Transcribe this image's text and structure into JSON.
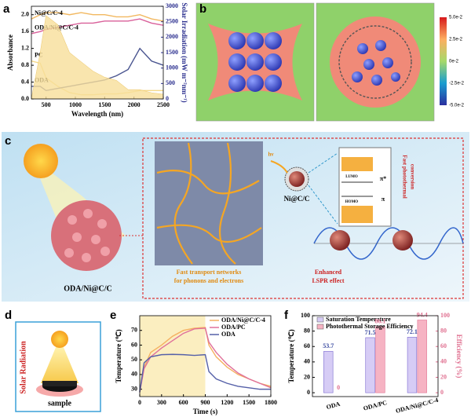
{
  "panel_labels": [
    "a",
    "b",
    "c",
    "d",
    "e",
    "f"
  ],
  "panels": {
    "b": {
      "colorbar_ticks": [
        "5.0e-2",
        "2.5e-2",
        "0e-2",
        "-2.5e-2",
        "-5.0e-2"
      ]
    },
    "c": {
      "particle_label": "ODA/Ni@C/C",
      "network_line1": "Fast transport networks",
      "network_line2": "for phonons and electrons",
      "nanoparticle": "Ni@C/C",
      "light": "hν",
      "lumo": "LUMO",
      "homo": "HOMO",
      "pi_star": "π*",
      "pi": "π",
      "lspr_line1": "Enhanced",
      "lspr_line2": "LSPR effect",
      "conversion_line1": "Fast photothermal",
      "conversion_line2": "conversion"
    },
    "d": {
      "side_label": "Solar Radiation",
      "sample": "sample"
    }
  },
  "chart_data": [
    {
      "type": "line",
      "x_label": "Wavelength (nm)",
      "y_label": "Absorbance",
      "y2_label": "Solar Irradiation (mW m⁻²nm⁻¹)",
      "x": [
        250,
        400,
        500,
        700,
        900,
        1100,
        1300,
        1500,
        1700,
        1900,
        2100,
        2300,
        2500
      ],
      "xlim": [
        250,
        2500
      ],
      "xticks": [
        500,
        1000,
        1500,
        2000,
        2500
      ],
      "ylim": [
        0,
        2.2
      ],
      "yticks": [
        {
          "value": 0,
          "label": "0.0"
        },
        0.4,
        0.8,
        1.2,
        1.6,
        {
          "value": 2,
          "label": "2.0"
        }
      ],
      "y2lim": [
        0,
        3000
      ],
      "y2ticks": [
        0,
        500,
        1000,
        1500,
        2000,
        2500,
        3000
      ],
      "series": [
        {
          "name": "Ni@C/C-4",
          "color": "#f2b860",
          "values": [
            1.9,
            2.0,
            2.05,
            2.05,
            2.0,
            2.05,
            2.0,
            2.0,
            1.95,
            1.95,
            2.0,
            1.9,
            1.85
          ]
        },
        {
          "name": "ODA/Ni@C/C-4",
          "color": "#d9609a",
          "values": [
            1.55,
            1.6,
            1.65,
            1.7,
            1.75,
            1.8,
            1.8,
            1.85,
            1.85,
            1.85,
            1.9,
            1.8,
            1.75
          ]
        },
        {
          "name": "PC",
          "color": "#f5d98a",
          "values": [
            0.9,
            0.85,
            0.5,
            0.3,
            0.15,
            0.1,
            0.1,
            0.12,
            0.12,
            0.15,
            0.2,
            0.2,
            0.2
          ]
        },
        {
          "name": "ODA",
          "color": "#4a5590",
          "values": [
            0.3,
            0.3,
            0.2,
            0.25,
            0.3,
            0.35,
            0.4,
            0.45,
            0.55,
            0.7,
            1.2,
            0.9,
            0.8
          ]
        },
        {
          "color": "#f7df9a",
          "axis": "y2",
          "fill_area": true,
          "values": [
            0,
            1500,
            2700,
            2400,
            1500,
            1200,
            900,
            700,
            600,
            300,
            300,
            200,
            150
          ]
        }
      ]
    },
    {
      "type": "line",
      "x_label": "Time (s)",
      "y_label": "Temperature (℃)",
      "x": [
        0,
        60,
        150,
        300,
        450,
        600,
        750,
        900,
        950,
        1050,
        1200,
        1350,
        1500,
        1650,
        1800
      ],
      "xlim": [
        0,
        1800
      ],
      "xticks": [
        0,
        300,
        600,
        900,
        1200,
        1500,
        1800
      ],
      "ylim": [
        25,
        80
      ],
      "yticks": [
        30,
        40,
        50,
        60,
        70
      ],
      "shaded_xrange": [
        0,
        900
      ],
      "legend": "top-right",
      "series": [
        {
          "name": "ODA/Ni@C/C-4",
          "color": "#f5b060",
          "values": [
            28,
            45,
            55,
            60,
            66,
            70,
            71.5,
            72,
            60,
            52,
            45,
            40,
            37,
            34,
            32
          ]
        },
        {
          "name": "ODA/PC",
          "color": "#e0709a",
          "values": [
            28,
            44,
            52,
            58,
            63,
            68,
            71,
            71.5,
            62,
            55,
            47,
            41,
            37,
            34,
            31
          ]
        },
        {
          "name": "ODA",
          "color": "#5560a8",
          "values": [
            28,
            48,
            52,
            53.5,
            53.7,
            53.5,
            53,
            53.5,
            42,
            37,
            34,
            32,
            31,
            30,
            30
          ]
        }
      ]
    },
    {
      "type": "bar",
      "y_label": "Temperature (℃)",
      "y2_label": "Efficiency (%)",
      "categories": [
        "ODA",
        "ODA/PC",
        "ODA/Ni@C/C-4"
      ],
      "ylim": [
        -5,
        100
      ],
      "yticks": [
        0,
        20,
        40,
        60,
        80,
        100
      ],
      "y2lim": [
        -5,
        100
      ],
      "y2ticks": [
        0,
        20,
        40,
        60,
        80,
        100
      ],
      "legend": "top-left",
      "series": [
        {
          "name": "Saturation Temperature",
          "color": "#d6ccf5",
          "label_color": "#3a4aa0",
          "values": [
            53.7,
            71.5,
            72.1
          ]
        },
        {
          "name": "Photothermal Storage Efficiency",
          "color": "#f6b3c3",
          "label_color": "#e07090",
          "axis": "y2",
          "values": [
            0,
            86.1,
            94.4
          ]
        }
      ]
    }
  ]
}
